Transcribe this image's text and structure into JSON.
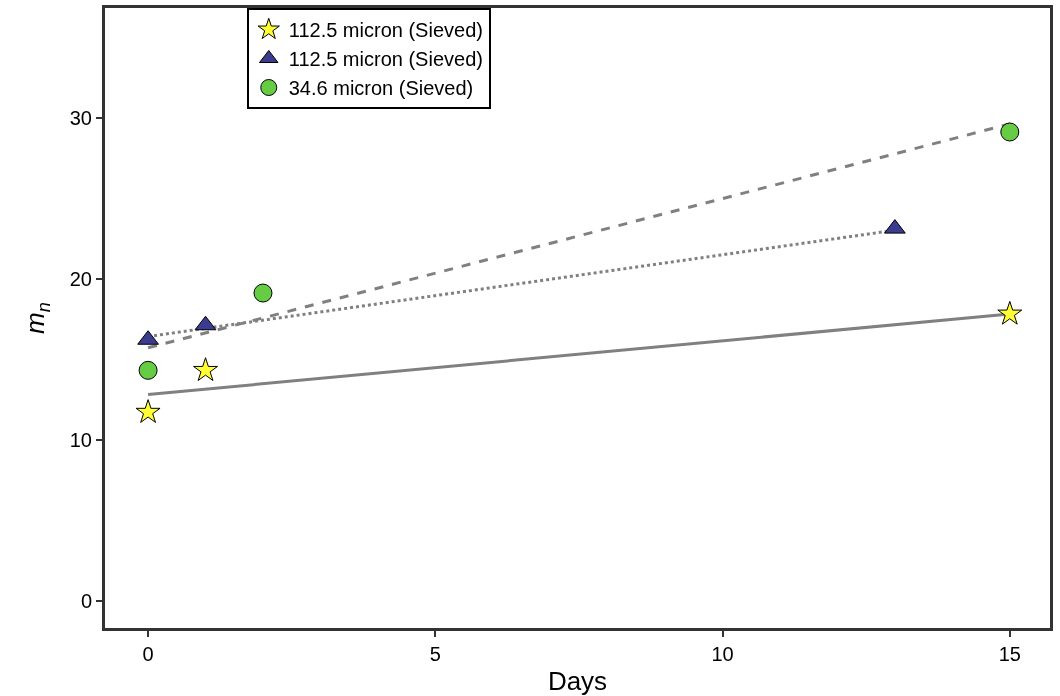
{
  "chart_data": {
    "type": "scatter",
    "xlabel": "Days",
    "ylabel": "m$_{n}$",
    "xlim": [
      -0.75,
      15.7
    ],
    "xticks": [
      0,
      5,
      10,
      15
    ],
    "ylim": [
      -1.7,
      36.8
    ],
    "yticks": [
      0,
      10,
      20,
      30
    ],
    "grid": false,
    "legend": "top left",
    "series": [
      {
        "name": "112.5 micron (Sieved)",
        "type": "scatter",
        "marker": "star",
        "color": "#ffff33",
        "x": [
          0,
          1,
          15
        ],
        "values": [
          11.7,
          14.3,
          17.8
        ]
      },
      {
        "name": "112.5 micron (Sieved)",
        "type": "scatter",
        "marker": "triangle",
        "color": "#3b3b8f",
        "x": [
          0,
          1,
          13
        ],
        "values": [
          16.2,
          17.1,
          23.1
        ]
      },
      {
        "name": "34.6 micron (Sieved)",
        "type": "scatter",
        "marker": "circle",
        "color": "#66cc44",
        "x": [
          0,
          2,
          15
        ],
        "values": [
          14.3,
          19.1,
          29.1
        ]
      },
      {
        "type": "line",
        "line_style": "solid",
        "color": "#808080",
        "x": [
          0,
          15
        ],
        "values": [
          12.8,
          17.8
        ]
      },
      {
        "type": "line",
        "line_style": "dotted",
        "color": "#808080",
        "x": [
          0,
          13
        ],
        "values": [
          16.4,
          23.0
        ]
      },
      {
        "type": "line",
        "line_style": "dashed",
        "color": "#808080",
        "x": [
          0,
          15
        ],
        "values": [
          15.7,
          29.6
        ]
      }
    ]
  }
}
